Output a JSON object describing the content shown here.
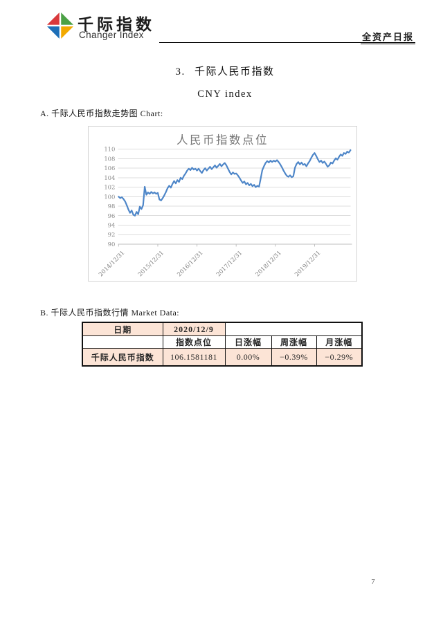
{
  "header": {
    "logo": {
      "cn": "千际指数",
      "en": "Changer Index",
      "colors": {
        "red": "#D9393C",
        "green": "#4BA145",
        "blue": "#1D6FB8",
        "yellow": "#F2A900"
      }
    },
    "report_label": "全资产日报"
  },
  "title": "3. 千际人民币指数",
  "subtitle": "CNY index",
  "section_a_label": "A. 千际人民币指数走势图 Chart:",
  "section_b_label": "B. 千际人民币指数行情 Market Data:",
  "chart_data": {
    "type": "line",
    "title": "人民币指数点位",
    "xlabel": "",
    "ylabel": "",
    "ylim": [
      90,
      110
    ],
    "yticks": [
      90,
      92,
      94,
      96,
      98,
      100,
      102,
      104,
      106,
      108,
      110
    ],
    "x_tick_labels": [
      "2014/12/31",
      "2015/12/31",
      "2016/12/31",
      "2017/12/31",
      "2018/12/31",
      "2019/12/31"
    ],
    "x_tick_every": 24,
    "grid": true,
    "legend_position": "none",
    "series": [
      {
        "name": "人民币指数点位",
        "color": "#4E86C8",
        "values": [
          100.0,
          99.7,
          99.9,
          99.5,
          99.0,
          98.2,
          97.3,
          96.6,
          97.1,
          96.2,
          96.0,
          96.8,
          96.3,
          97.9,
          97.4,
          98.2,
          102.1,
          100.4,
          100.9,
          100.6,
          101.0,
          100.7,
          100.9,
          100.6,
          100.8,
          99.4,
          99.2,
          99.7,
          100.3,
          101.0,
          101.8,
          102.3,
          101.9,
          102.7,
          103.3,
          102.8,
          103.5,
          103.1,
          104.0,
          103.7,
          104.4,
          104.9,
          105.5,
          105.9,
          105.6,
          106.1,
          105.7,
          105.9,
          105.5,
          105.9,
          105.4,
          105.0,
          105.6,
          106.0,
          105.5,
          105.9,
          106.3,
          105.8,
          106.2,
          106.6,
          106.1,
          106.5,
          106.9,
          106.4,
          106.8,
          107.1,
          106.6,
          105.9,
          105.2,
          104.7,
          105.1,
          104.8,
          104.9,
          104.5,
          104.0,
          103.4,
          102.9,
          103.2,
          102.6,
          102.9,
          102.4,
          102.7,
          102.2,
          102.5,
          102.0,
          102.3,
          102.1,
          103.8,
          105.6,
          106.4,
          107.1,
          107.5,
          107.2,
          107.6,
          107.3,
          107.6,
          107.4,
          107.7,
          107.3,
          106.8,
          106.2,
          105.5,
          104.9,
          104.4,
          104.2,
          104.5,
          104.1,
          104.3,
          106.1,
          106.9,
          107.3,
          106.8,
          107.2,
          106.7,
          106.9,
          106.4,
          107.0,
          107.5,
          108.2,
          108.8,
          109.2,
          108.6,
          107.9,
          107.3,
          107.6,
          107.1,
          107.4,
          106.9,
          106.3,
          106.6,
          107.2,
          107.0,
          107.6,
          108.1,
          107.8,
          108.4,
          108.9,
          108.6,
          109.2,
          109.0,
          109.5,
          109.3,
          109.8
        ]
      }
    ]
  },
  "table": {
    "fill_color": "#FCE4D6",
    "r1": {
      "date_label": "日期",
      "date_value": "2020/12/9"
    },
    "r2": {
      "c2": "指数点位",
      "c3": "日涨幅",
      "c4": "周涨幅",
      "c5": "月涨幅"
    },
    "r3": {
      "c1": "千际人民币指数",
      "c2": "106.1581181",
      "c3": "0.00%",
      "c4": "−0.39%",
      "c5": "−0.29%"
    }
  },
  "page_number": "7"
}
